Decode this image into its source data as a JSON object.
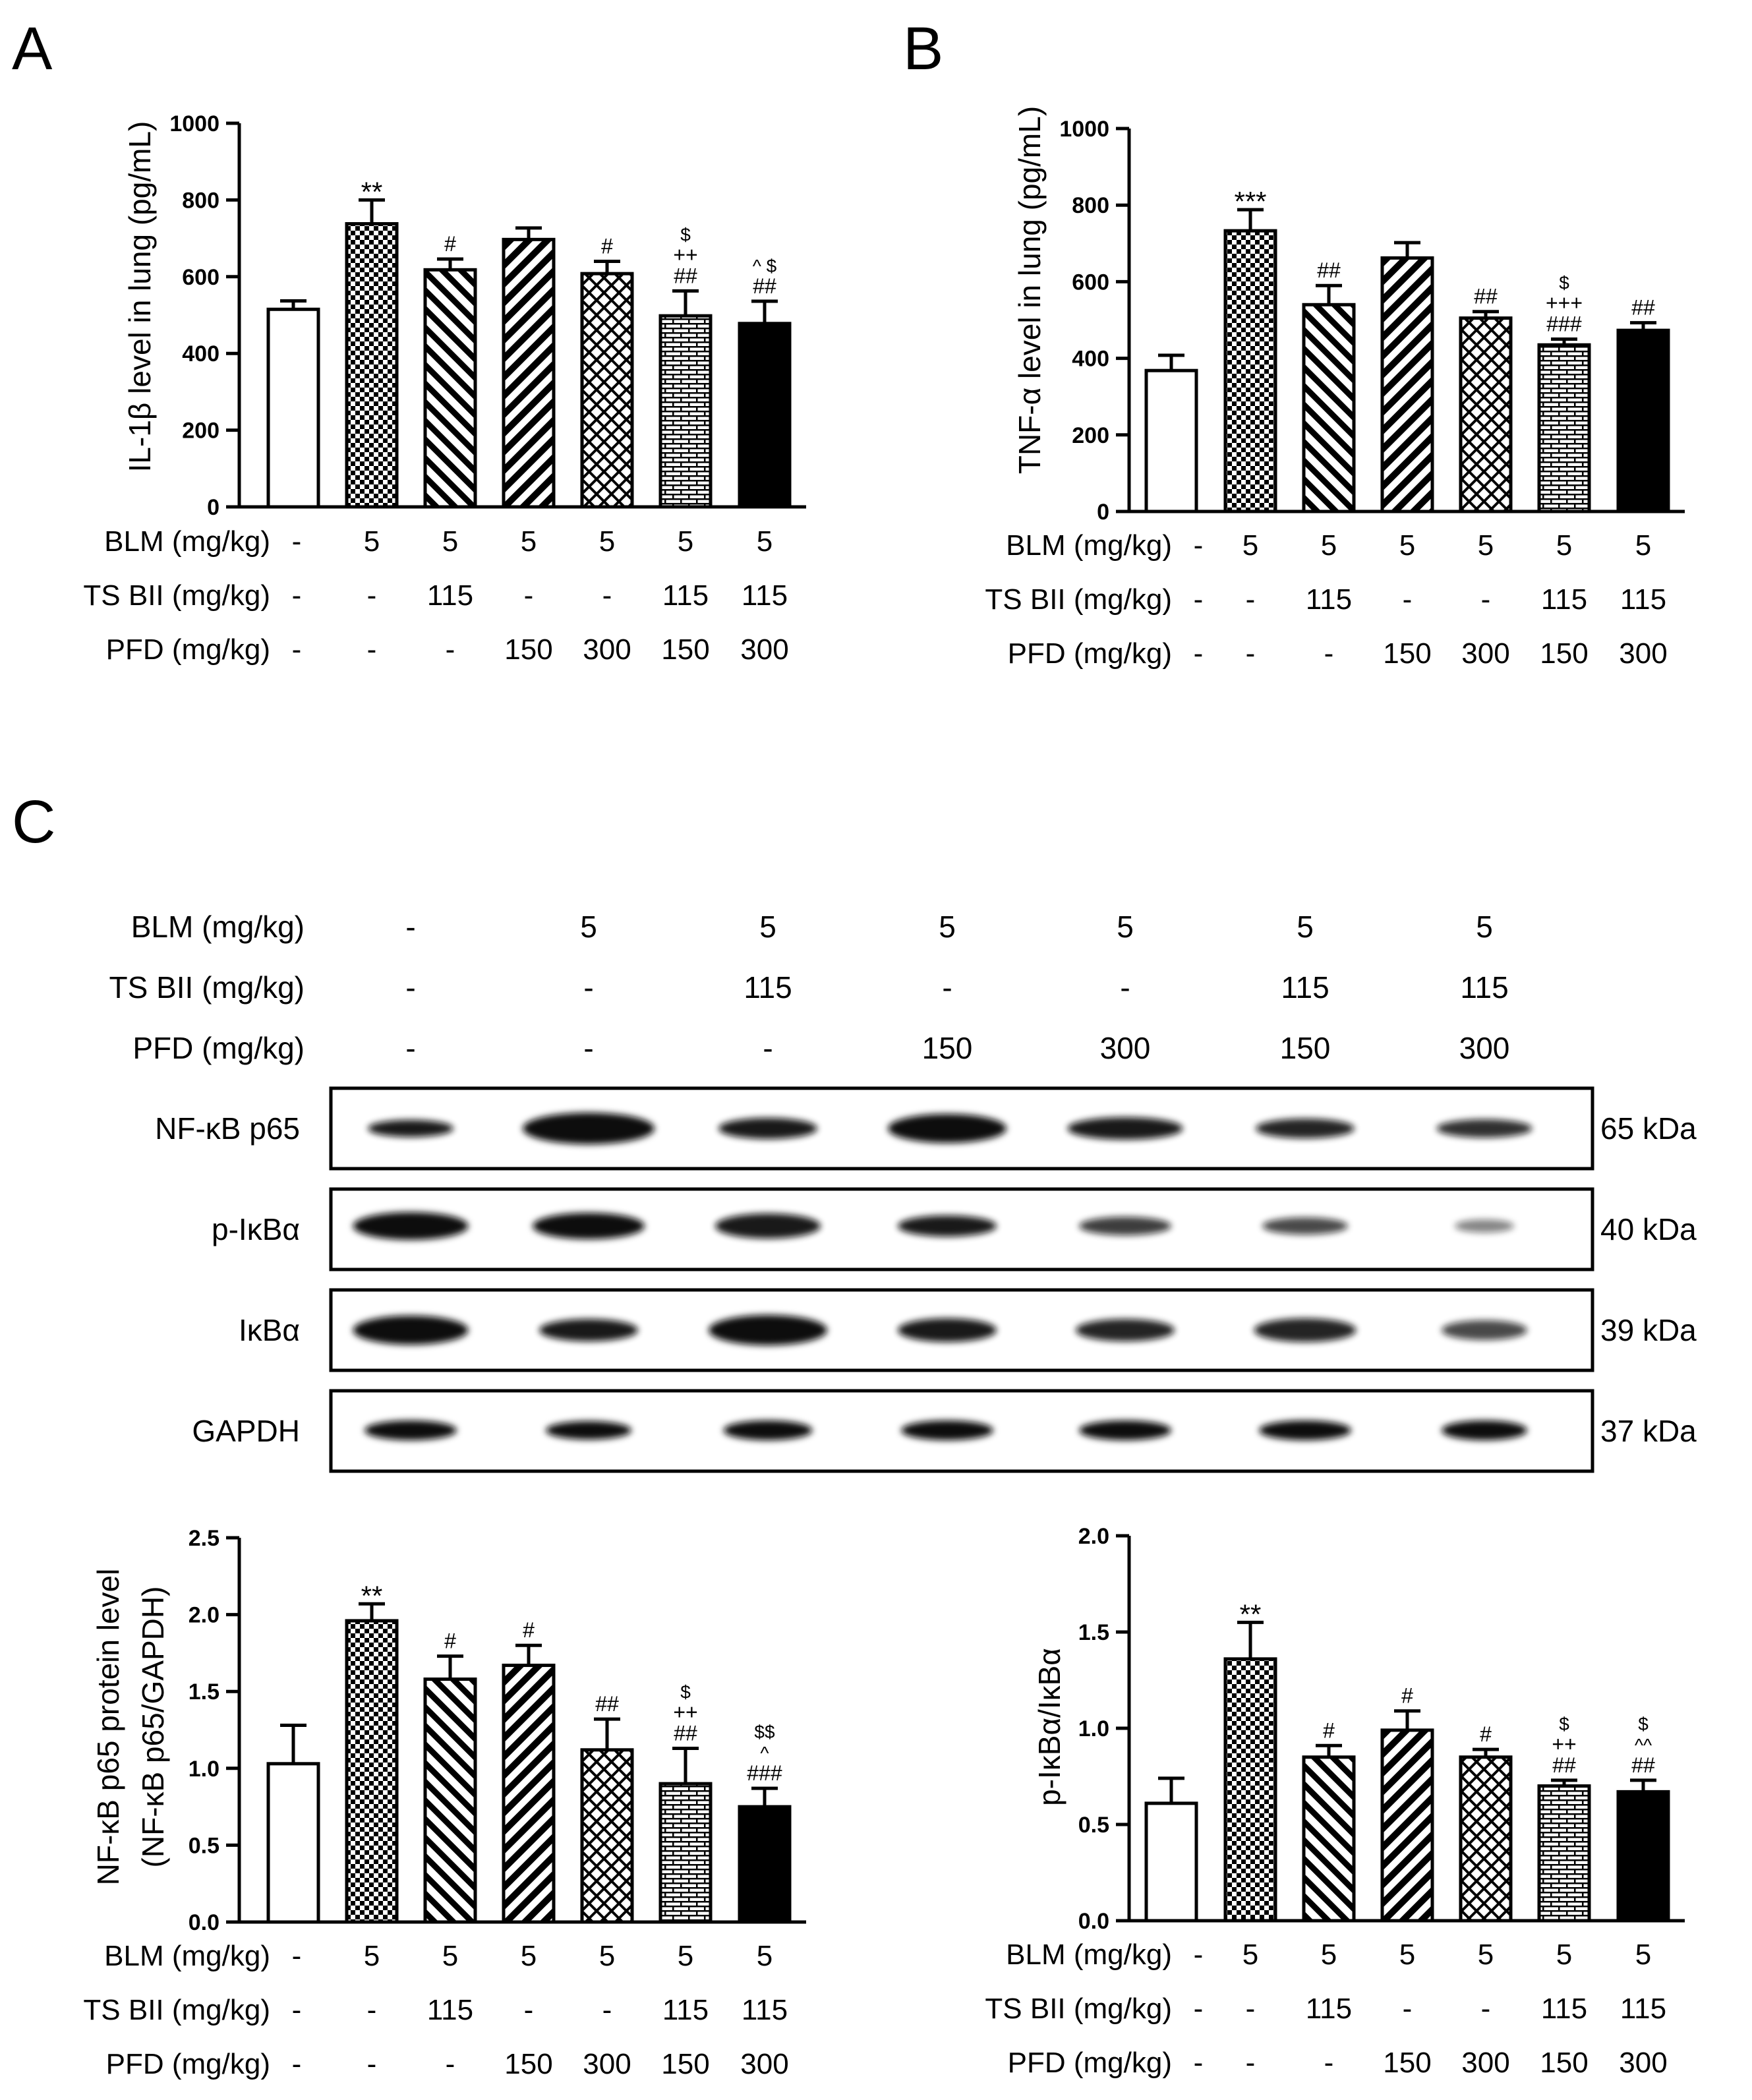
{
  "panel_letters": {
    "a": "A",
    "b": "B",
    "c": "C"
  },
  "treatment_labels": {
    "blm": "BLM (mg/kg)",
    "tsbii": "TS BII (mg/kg)",
    "pfd": "PFD (mg/kg)"
  },
  "treatments": {
    "blm": [
      "-",
      "5",
      "5",
      "5",
      "5",
      "5",
      "5"
    ],
    "tsbii": [
      "-",
      "-",
      "115",
      "-",
      "-",
      "115",
      "115"
    ],
    "pfd": [
      "-",
      "-",
      "-",
      "150",
      "300",
      "150",
      "300"
    ]
  },
  "bar_patterns": [
    "open",
    "checker",
    "diag-back",
    "diag-fwd",
    "crosshatch",
    "brick",
    "solid"
  ],
  "colors": {
    "ink": "#000000",
    "background": "#ffffff",
    "band": "#111111"
  },
  "western_blot": {
    "rows": [
      {
        "name": "NF-κB p65",
        "size": "65 kDa"
      },
      {
        "name": "p-IκBα",
        "size": "40 kDa"
      },
      {
        "name": "IκBα",
        "size": "39 kDa"
      },
      {
        "name": "GAPDH",
        "size": "37 kDa"
      }
    ]
  },
  "chart_data": [
    {
      "type": "bar",
      "panel": "A",
      "ylabel": "IL-1β level in lung (pg/mL)",
      "ylim": [
        0,
        1000
      ],
      "yticks": [
        0,
        200,
        400,
        600,
        800,
        1000
      ],
      "ytick_labels": [
        "0",
        "200",
        "400",
        "600",
        "800",
        "1000"
      ],
      "values": [
        515,
        738,
        618,
        697,
        608,
        498,
        478
      ],
      "errors": [
        22,
        62,
        28,
        30,
        32,
        65,
        58
      ],
      "annotations": [
        [],
        [
          "**"
        ],
        [
          "#"
        ],
        [],
        [
          "#"
        ],
        [
          "##",
          "++",
          "$"
        ],
        [
          "##",
          "^ $"
        ]
      ]
    },
    {
      "type": "bar",
      "panel": "B",
      "ylabel": "TNF-α level in lung (pg/mL)",
      "ylim": [
        0,
        1000
      ],
      "yticks": [
        0,
        200,
        400,
        600,
        800,
        1000
      ],
      "ytick_labels": [
        "0",
        "200",
        "400",
        "600",
        "800",
        "1000"
      ],
      "values": [
        368,
        733,
        540,
        662,
        505,
        435,
        473
      ],
      "errors": [
        40,
        55,
        50,
        40,
        17,
        15,
        20
      ],
      "annotations": [
        [],
        [
          "***"
        ],
        [
          "##"
        ],
        [],
        [
          "##"
        ],
        [
          "###",
          "+++",
          "$"
        ],
        [
          "##"
        ]
      ]
    },
    {
      "type": "bar",
      "panel": "C-left",
      "ylabel": "NF-κB p65 protein level",
      "ylabel2": "(NF-κB p65/GAPDH)",
      "ylim": [
        0,
        2.5
      ],
      "yticks": [
        0,
        0.5,
        1.0,
        1.5,
        2.0,
        2.5
      ],
      "ytick_labels": [
        "0.0",
        "0.5",
        "1.0",
        "1.5",
        "2.0",
        "2.5"
      ],
      "values": [
        1.03,
        1.96,
        1.58,
        1.67,
        1.12,
        0.9,
        0.75
      ],
      "errors": [
        0.25,
        0.11,
        0.15,
        0.13,
        0.2,
        0.23,
        0.12
      ],
      "annotations": [
        [],
        [
          "**"
        ],
        [
          "#"
        ],
        [
          "#"
        ],
        [
          "##"
        ],
        [
          "##",
          "++",
          "$"
        ],
        [
          "###",
          "^",
          "$$"
        ]
      ]
    },
    {
      "type": "bar",
      "panel": "C-right",
      "ylabel": "p-IκBα/IκBα",
      "ylim": [
        0,
        2.0
      ],
      "yticks": [
        0,
        0.5,
        1.0,
        1.5,
        2.0
      ],
      "ytick_labels": [
        "0.0",
        "0.5",
        "1.0",
        "1.5",
        "2.0"
      ],
      "values": [
        0.61,
        1.36,
        0.85,
        0.99,
        0.85,
        0.7,
        0.67
      ],
      "errors": [
        0.13,
        0.19,
        0.06,
        0.1,
        0.04,
        0.03,
        0.06
      ],
      "annotations": [
        [],
        [
          "**"
        ],
        [
          "#"
        ],
        [
          "#"
        ],
        [
          "#"
        ],
        [
          "##",
          "++",
          "$"
        ],
        [
          "##",
          "^^",
          "$"
        ]
      ]
    }
  ]
}
